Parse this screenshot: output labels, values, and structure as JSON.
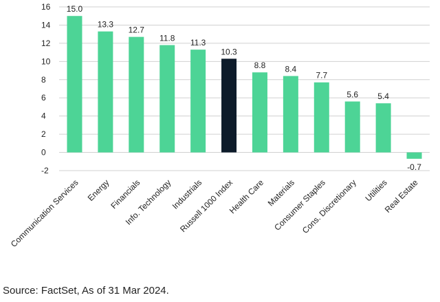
{
  "chart_data": {
    "type": "bar",
    "categories": [
      "Communication Services",
      "Energy",
      "Financials",
      "Info. Technology",
      "Industrials",
      "Russell 1000 Index",
      "Health Care",
      "Materials",
      "Consumer Staples",
      "Cons. Discretionary",
      "Utilities",
      "Real Estate"
    ],
    "values": [
      15.0,
      13.3,
      12.7,
      11.8,
      11.3,
      10.3,
      8.8,
      8.4,
      7.7,
      5.6,
      5.4,
      -0.7
    ],
    "value_labels": [
      "15.0",
      "13.3",
      "12.7",
      "11.8",
      "11.3",
      "10.3",
      "8.8",
      "8.4",
      "7.7",
      "5.6",
      "5.4",
      "-0.7"
    ],
    "highlight_index": 5,
    "ylim": [
      -2,
      16
    ],
    "yticks": [
      -2,
      0,
      2,
      4,
      6,
      8,
      10,
      12,
      14,
      16
    ],
    "grid": true,
    "colors": {
      "bar": "#4dd496",
      "highlight": "#0d1b2a",
      "grid": "#d0d0d0"
    }
  },
  "source_note": "Source: FactSet, As of 31 Mar 2024."
}
